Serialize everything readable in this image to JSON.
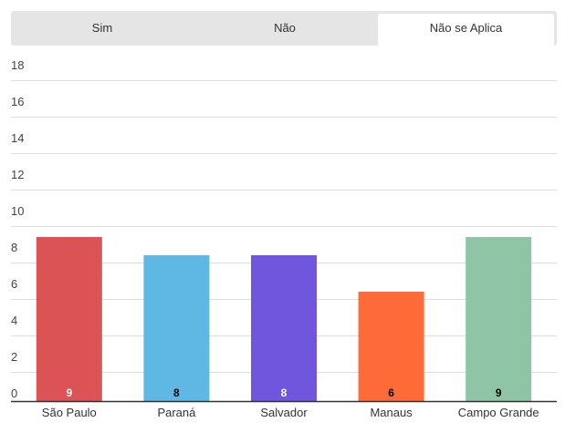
{
  "tabs": [
    {
      "label": "Sim"
    },
    {
      "label": "Não"
    },
    {
      "label": "Não se Aplica",
      "active": true
    }
  ],
  "chart_data": {
    "type": "bar",
    "categories": [
      "São Paulo",
      "Paraná",
      "Salvador",
      "Manaus",
      "Campo Grande"
    ],
    "values": [
      9,
      8,
      8,
      6,
      9
    ],
    "colors": [
      "#dc5355",
      "#5fb7e4",
      "#6f56dc",
      "#fe6a38",
      "#8fc4a7"
    ],
    "data_label_colors": [
      "#ffffff",
      "#000000",
      "#ffffff",
      "#000000",
      "#000000"
    ],
    "ylim": [
      0,
      18
    ],
    "yticks": [
      0,
      2,
      4,
      6,
      8,
      10,
      12,
      14,
      16,
      18
    ],
    "grid": true,
    "legend": "none"
  }
}
